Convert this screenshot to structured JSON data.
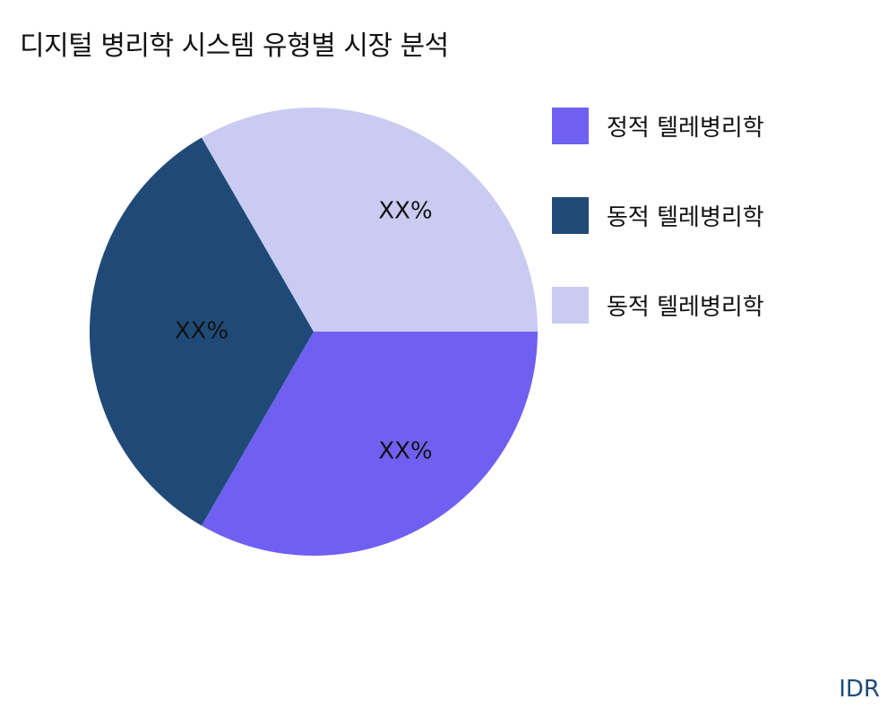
{
  "chart_data": {
    "type": "pie",
    "title": "디지털 병리학 시스템 유형별 시장 분석",
    "slices": [
      {
        "name": "정적 텔레병리학",
        "value": 33.33,
        "label": "XX%",
        "color": "#6f60f2"
      },
      {
        "name": "동적 텔레병리학",
        "value": 33.33,
        "label": "XX%",
        "color": "#1f4a78"
      },
      {
        "name": "동적 텔레병리학",
        "value": 33.33,
        "label": "XX%",
        "color": "#c9cbf1"
      }
    ],
    "start_angle": "3 o'clock",
    "direction": "clockwise",
    "legend_placement": "right"
  },
  "source": "IDR"
}
